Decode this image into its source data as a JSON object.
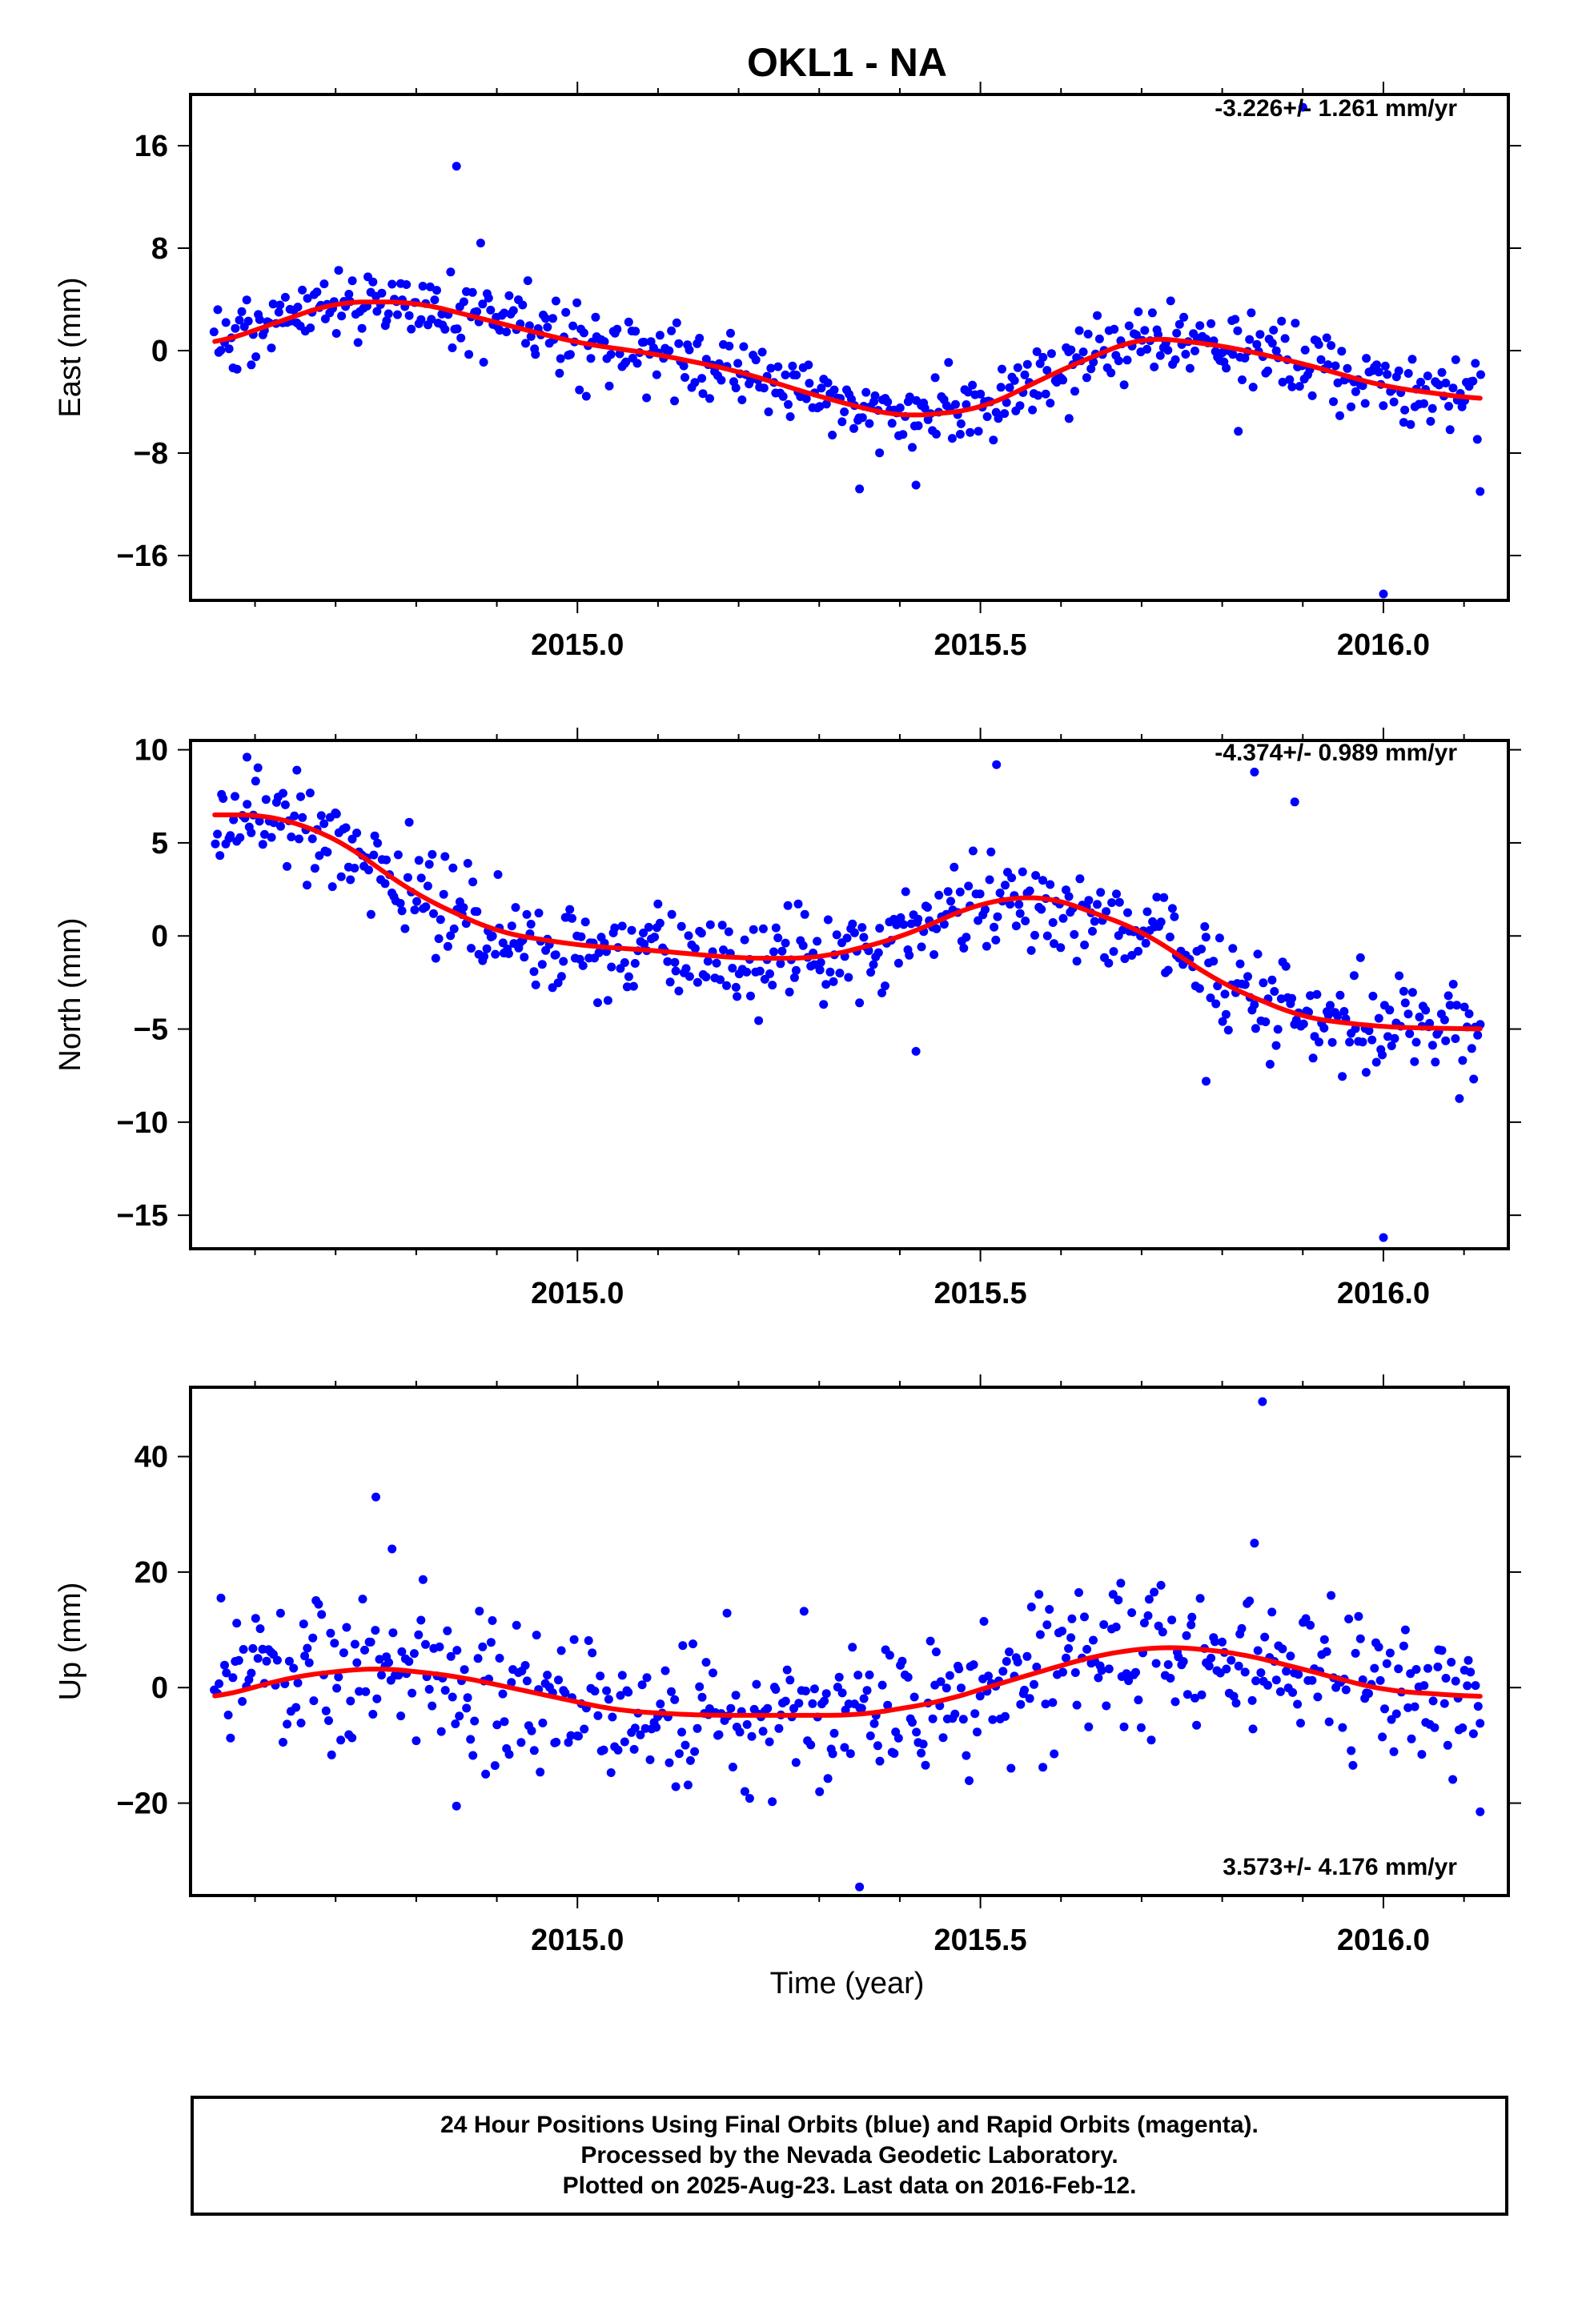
{
  "title": "OKL1 - NA",
  "colors": {
    "points": "#0000ff",
    "fit": "#ff0000",
    "frame": "#000000"
  },
  "xlabel": "Time (year)",
  "footer": {
    "line1": "24 Hour Positions Using Final Orbits (blue) and Rapid Orbits (magenta).",
    "line2": "Processed by the Nevada Geodetic Laboratory.",
    "line3": "Plotted on 2025-Aug-23. Last data on 2016-Feb-12."
  },
  "chart_data": [
    {
      "type": "scatter",
      "component": "East",
      "ylabel": "East (mm)",
      "rate": "-3.226+/- 1.261 mm/yr",
      "xlim": [
        2014.52,
        2016.155
      ],
      "ylim": [
        -19.5,
        20
      ],
      "xticks": [
        2015.0,
        2015.5,
        2016.0
      ],
      "xtick_labels": [
        "2015.0",
        "2015.5",
        "2016.0"
      ],
      "yticks": [
        -16,
        -8,
        0,
        8,
        16
      ],
      "ytick_labels": [
        "−16",
        "−8",
        "0",
        "8",
        "16"
      ],
      "trend": {
        "x": [
          2014.55,
          2014.7,
          2014.8,
          2014.9,
          2015.0,
          2015.1,
          2015.2,
          2015.3,
          2015.4,
          2015.5,
          2015.6,
          2015.7,
          2015.8,
          2015.9,
          2016.0,
          2016.12
        ],
        "y": [
          0.5,
          3.8,
          3.8,
          2.2,
          0.6,
          -0.3,
          -1.6,
          -3.6,
          -5.2,
          -4.6,
          -1.5,
          1.1,
          0.4,
          -1.0,
          -2.8,
          -3.8
        ]
      },
      "outliers": {
        "x": [
          2014.85,
          2014.88,
          2015.35,
          2015.42,
          2015.9,
          2015.82,
          2016.0,
          2016.12,
          2015.61
        ],
        "y": [
          14.4,
          8.4,
          -10.8,
          -10.5,
          19.0,
          -6.3,
          -19.0,
          -11.0,
          -5.3
        ]
      },
      "scatter_sd": 1.4
    },
    {
      "type": "scatter",
      "component": "North",
      "ylabel": "North (mm)",
      "rate": "-4.374+/- 0.989 mm/yr",
      "xlim": [
        2014.52,
        2016.155
      ],
      "ylim": [
        -16.8,
        10.5
      ],
      "xticks": [
        2015.0,
        2015.5,
        2016.0
      ],
      "xtick_labels": [
        "2015.0",
        "2015.5",
        "2016.0"
      ],
      "yticks": [
        -15,
        -10,
        -5,
        0,
        5,
        10
      ],
      "ytick_labels": [
        "−15",
        "−10",
        "−5",
        "0",
        "5",
        "10"
      ],
      "trend": {
        "x": [
          2014.55,
          2014.62,
          2014.7,
          2014.8,
          2014.9,
          2015.0,
          2015.1,
          2015.2,
          2015.3,
          2015.4,
          2015.5,
          2015.58,
          2015.7,
          2015.8,
          2015.9,
          2016.0,
          2016.12
        ],
        "y": [
          6.5,
          6.5,
          5.3,
          2.2,
          0.2,
          -0.5,
          -0.8,
          -1.2,
          -1.2,
          -0.1,
          1.8,
          2.2,
          0.3,
          -2.6,
          -4.4,
          -4.9,
          -5.0
        ]
      },
      "outliers": {
        "x": [
          2014.59,
          2015.52,
          2015.89,
          2015.84,
          2016.0,
          2015.42,
          2015.78
        ],
        "y": [
          9.6,
          9.2,
          7.2,
          8.8,
          -16.2,
          -6.2,
          -7.8
        ]
      },
      "scatter_sd": 1.3
    },
    {
      "type": "scatter",
      "component": "Up",
      "ylabel": "Up (mm)",
      "rate": "3.573+/- 4.176 mm/yr",
      "xlim": [
        2014.52,
        2016.155
      ],
      "ylim": [
        -36,
        52
      ],
      "xticks": [
        2015.0,
        2015.5,
        2016.0
      ],
      "xtick_labels": [
        "2015.0",
        "2015.5",
        "2016.0"
      ],
      "yticks": [
        -20,
        0,
        20,
        40
      ],
      "ytick_labels": [
        "−20",
        "0",
        "20",
        "40"
      ],
      "trend": {
        "x": [
          2014.55,
          2014.65,
          2014.75,
          2014.85,
          2014.95,
          2015.05,
          2015.15,
          2015.25,
          2015.35,
          2015.45,
          2015.55,
          2015.65,
          2015.73,
          2015.82,
          2015.9,
          2016.0,
          2016.12
        ],
        "y": [
          -1.8,
          2.0,
          3.5,
          2.0,
          -1.0,
          -4.0,
          -4.8,
          -4.8,
          -4.8,
          -2.5,
          1.8,
          5.8,
          7.2,
          6.0,
          3.2,
          -0.5,
          -1.6
        ]
      },
      "outliers": {
        "x": [
          2014.75,
          2015.85,
          2015.35,
          2015.84,
          2014.77,
          2016.12,
          2014.85
        ],
        "y": [
          33.0,
          49.5,
          -34.5,
          25.0,
          24.0,
          -21.5,
          -20.5
        ]
      },
      "scatter_sd": 6.5
    }
  ]
}
